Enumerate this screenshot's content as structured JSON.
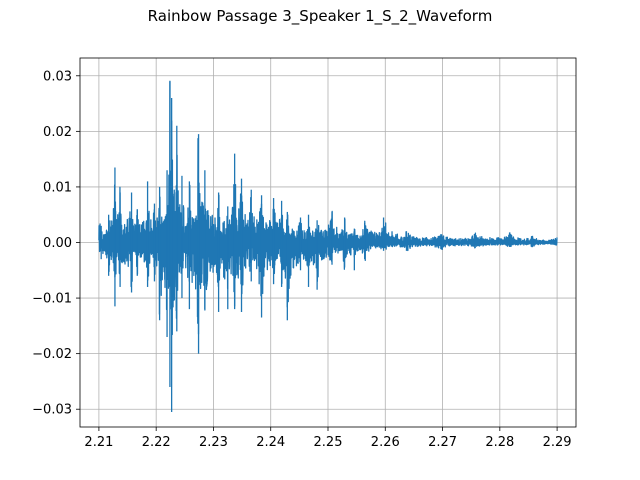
{
  "chart_data": {
    "type": "line",
    "title": "Rainbow Passage 3_Speaker 1_S_2_Waveform",
    "xlabel": "",
    "ylabel": "",
    "xlim": [
      2.2067,
      2.2933
    ],
    "ylim": [
      -0.0332,
      0.0332
    ],
    "xticks": [
      2.21,
      2.22,
      2.23,
      2.24,
      2.25,
      2.26,
      2.27,
      2.28,
      2.29
    ],
    "xtick_labels": [
      "2.21",
      "2.22",
      "2.23",
      "2.24",
      "2.25",
      "2.26",
      "2.27",
      "2.28",
      "2.29"
    ],
    "yticks": [
      -0.03,
      -0.02,
      -0.01,
      0.0,
      0.01,
      0.02,
      0.03
    ],
    "ytick_labels": [
      "−0.03",
      "−0.02",
      "−0.01",
      "0.00",
      "0.01",
      "0.02",
      "0.03"
    ],
    "grid": true,
    "series": [
      {
        "color": "#1f77b4",
        "x_range": [
          2.21,
          2.29
        ],
        "sample_count": 3529,
        "peaks": [
          {
            "x": 2.2104,
            "y_max": 0.003,
            "y_min": -0.003
          },
          {
            "x": 2.2117,
            "y_max": 0.005,
            "y_min": -0.006
          },
          {
            "x": 2.2128,
            "y_max": 0.0135,
            "y_min": -0.0115
          },
          {
            "x": 2.2137,
            "y_max": 0.009,
            "y_min": -0.008
          },
          {
            "x": 2.2157,
            "y_max": 0.009,
            "y_min": -0.009
          },
          {
            "x": 2.2167,
            "y_max": 0.006,
            "y_min": -0.006
          },
          {
            "x": 2.2185,
            "y_max": 0.011,
            "y_min": -0.008
          },
          {
            "x": 2.2197,
            "y_max": 0.007,
            "y_min": -0.007
          },
          {
            "x": 2.2206,
            "y_max": 0.01,
            "y_min": -0.014
          },
          {
            "x": 2.2219,
            "y_max": 0.013,
            "y_min": -0.017
          },
          {
            "x": 2.2224,
            "y_max": 0.029,
            "y_min": -0.026
          },
          {
            "x": 2.2227,
            "y_max": 0.026,
            "y_min": -0.0305
          },
          {
            "x": 2.2236,
            "y_max": 0.021,
            "y_min": -0.016
          },
          {
            "x": 2.2245,
            "y_max": 0.012,
            "y_min": -0.01
          },
          {
            "x": 2.2258,
            "y_max": 0.011,
            "y_min": -0.012
          },
          {
            "x": 2.2274,
            "y_max": 0.0195,
            "y_min": -0.02
          },
          {
            "x": 2.2285,
            "y_max": 0.013,
            "y_min": -0.012
          },
          {
            "x": 2.2309,
            "y_max": 0.009,
            "y_min": -0.0125
          },
          {
            "x": 2.2325,
            "y_max": 0.0065,
            "y_min": -0.012
          },
          {
            "x": 2.2337,
            "y_max": 0.016,
            "y_min": -0.012
          },
          {
            "x": 2.2349,
            "y_max": 0.0115,
            "y_min": -0.0125
          },
          {
            "x": 2.2366,
            "y_max": 0.0095,
            "y_min": -0.007
          },
          {
            "x": 2.2384,
            "y_max": 0.0085,
            "y_min": -0.0135
          },
          {
            "x": 2.2405,
            "y_max": 0.008,
            "y_min": -0.0075
          },
          {
            "x": 2.2419,
            "y_max": 0.0075,
            "y_min": -0.008
          },
          {
            "x": 2.2429,
            "y_max": 0.0055,
            "y_min": -0.014
          },
          {
            "x": 2.2452,
            "y_max": 0.0045,
            "y_min": -0.005
          },
          {
            "x": 2.2466,
            "y_max": 0.005,
            "y_min": -0.008
          },
          {
            "x": 2.2481,
            "y_max": 0.004,
            "y_min": -0.0085
          },
          {
            "x": 2.2507,
            "y_max": 0.0055,
            "y_min": -0.004
          },
          {
            "x": 2.2529,
            "y_max": 0.0045,
            "y_min": -0.0045
          },
          {
            "x": 2.2546,
            "y_max": 0.0025,
            "y_min": -0.005
          },
          {
            "x": 2.2564,
            "y_max": 0.0035,
            "y_min": -0.003
          },
          {
            "x": 2.2597,
            "y_max": 0.0045,
            "y_min": -0.0015
          },
          {
            "x": 2.2637,
            "y_max": 0.002,
            "y_min": -0.0015
          },
          {
            "x": 2.2697,
            "y_max": 0.0015,
            "y_min": -0.0012
          },
          {
            "x": 2.2757,
            "y_max": 0.0015,
            "y_min": -0.001
          },
          {
            "x": 2.2817,
            "y_max": 0.0018,
            "y_min": -0.0008
          },
          {
            "x": 2.2857,
            "y_max": 0.0012,
            "y_min": -0.0008
          },
          {
            "x": 2.2897,
            "y_max": 0.0008,
            "y_min": -0.0005
          }
        ]
      }
    ]
  }
}
